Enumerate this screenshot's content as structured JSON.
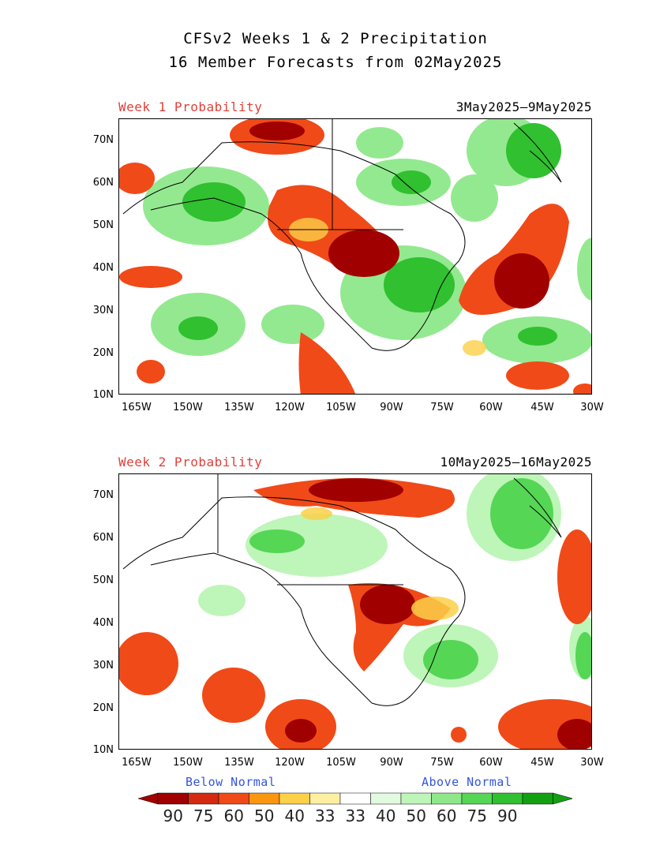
{
  "header": {
    "line1": "CFSv2 Weeks 1 & 2 Precipitation",
    "line2": "16 Member Forecasts from 02May2025"
  },
  "panels": [
    {
      "label": "Week 1 Probability",
      "dates": "3May2025—9May2025"
    },
    {
      "label": "Week 2 Probability",
      "dates": "10May2025—16May2025"
    }
  ],
  "axes": {
    "lat_labels": [
      "70N",
      "60N",
      "50N",
      "40N",
      "30N",
      "20N",
      "10N"
    ],
    "lon_labels": [
      "165W",
      "150W",
      "135W",
      "120W",
      "105W",
      "90W",
      "75W",
      "60W",
      "45W",
      "30W"
    ]
  },
  "legend": {
    "below_label": "Below Normal",
    "above_label": "Above Normal",
    "values": [
      "90",
      "75",
      "60",
      "50",
      "40",
      "33",
      "33",
      "40",
      "50",
      "60",
      "75",
      "90"
    ],
    "colors": {
      "below": [
        "#a00000",
        "#d42a10",
        "#f04a18",
        "#fa9610",
        "#fcd048",
        "#fef0a0"
      ],
      "neutral": "#ffffff",
      "above": [
        "#e2fae0",
        "#bef5b8",
        "#8ee88a",
        "#55d655",
        "#30c030",
        "#12a012"
      ]
    }
  }
}
